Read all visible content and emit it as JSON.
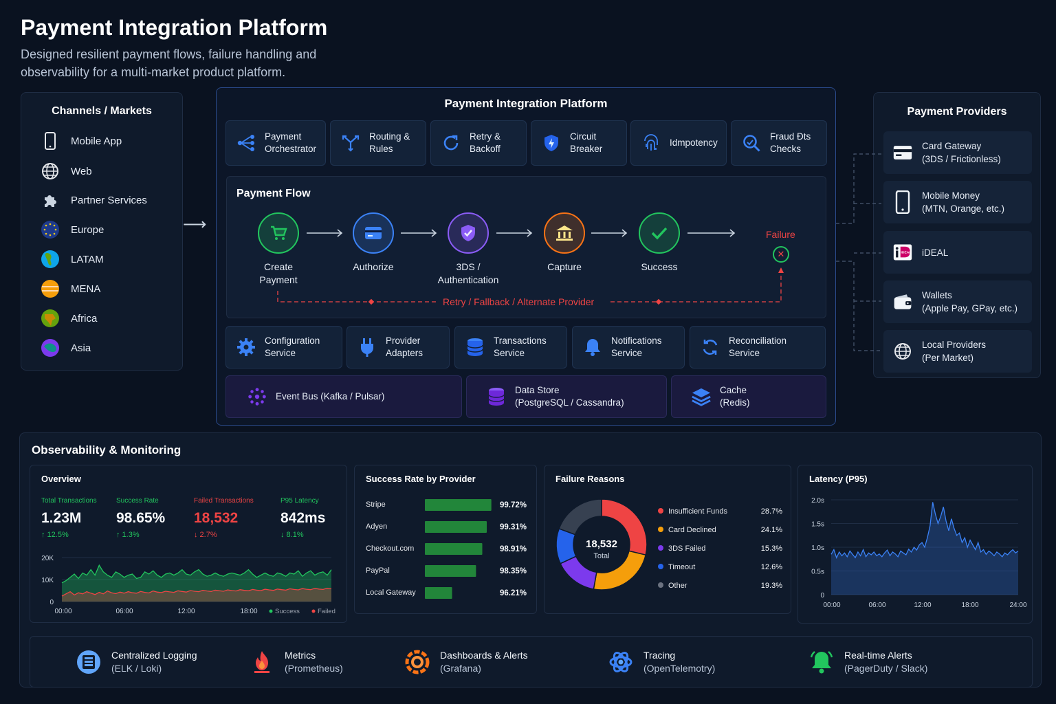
{
  "header": {
    "title": "Payment Integration Platform",
    "subtitle": "Designed resilient payment flows, failure handling and observability for a multi-market product platform."
  },
  "channels": {
    "title": "Channels / Markets",
    "items": [
      {
        "label": "Mobile App",
        "icon": "phone-icon"
      },
      {
        "label": "Web",
        "icon": "globe-icon"
      },
      {
        "label": "Partner Services",
        "icon": "puzzle-icon"
      },
      {
        "label": "Europe",
        "icon": "eu-flag-icon"
      },
      {
        "label": "LATAM",
        "icon": "latam-globe-icon"
      },
      {
        "label": "MENA",
        "icon": "mena-globe-icon"
      },
      {
        "label": "Africa",
        "icon": "africa-globe-icon"
      },
      {
        "label": "Asia",
        "icon": "asia-globe-icon"
      }
    ]
  },
  "platform": {
    "title": "Payment Integration Platform",
    "top_modules": [
      {
        "l1": "Payment",
        "l2": "Orchestrator",
        "icon": "orchestrator-icon"
      },
      {
        "l1": "Routing &",
        "l2": "Rules",
        "icon": "routing-icon"
      },
      {
        "l1": "Retry &",
        "l2": "Backoff",
        "icon": "retry-icon"
      },
      {
        "l1": "Circuit",
        "l2": "Breaker",
        "icon": "shield-bolt-icon"
      },
      {
        "l1": "Idmpotency",
        "l2": "",
        "icon": "fingerprint-icon"
      },
      {
        "l1": "Fraud Đts",
        "l2": "Checks",
        "icon": "search-icon"
      }
    ],
    "flow": {
      "title": "Payment Flow",
      "steps": [
        {
          "l1": "Create",
          "l2": "Payment",
          "color": "#22c55e",
          "icon": "cart-icon"
        },
        {
          "l1": "Authorize",
          "l2": "",
          "color": "#3b82f6",
          "icon": "card-icon"
        },
        {
          "l1": "3DS /",
          "l2": "Authentication",
          "color": "#8b5cf6",
          "icon": "shield-check-icon"
        },
        {
          "l1": "Capture",
          "l2": "",
          "color": "#f97316",
          "icon": "bank-icon"
        },
        {
          "l1": "Success",
          "l2": "",
          "color": "#22c55e",
          "icon": "check-icon"
        }
      ],
      "failure_label": "Failure",
      "retry_label": "Retry / Fallback / Alternate Provider"
    },
    "services": [
      {
        "l1": "Configuration",
        "l2": "Service",
        "icon": "gear-icon"
      },
      {
        "l1": "Provider",
        "l2": "Adapters",
        "icon": "plug-icon"
      },
      {
        "l1": "Transactions",
        "l2": "Service",
        "icon": "database-icon"
      },
      {
        "l1": "Notifications",
        "l2": "Service",
        "icon": "bell-icon"
      },
      {
        "l1": "Reconciliation",
        "l2": "Service",
        "icon": "sync-icon"
      }
    ],
    "infra": [
      {
        "l1": "Event Bus (Kafka / Pulsar)",
        "l2": "",
        "icon": "event-bus-icon"
      },
      {
        "l1": "Data Store",
        "l2": "(PostgreSQL / Cassandra)",
        "icon": "datastore-icon"
      },
      {
        "l1": "Cache",
        "l2": "(Redis)",
        "icon": "layers-icon"
      }
    ]
  },
  "providers": {
    "title": "Payment Providers",
    "items": [
      {
        "l1": "Card Gateway",
        "l2": "(3DS / Frictionless)",
        "icon": "credit-card-icon"
      },
      {
        "l1": "Mobile Money",
        "l2": "(MTN, Orange, etc.)",
        "icon": "mobile-icon"
      },
      {
        "l1": "iDEAL",
        "l2": "",
        "icon": "ideal-logo-icon"
      },
      {
        "l1": "Wallets",
        "l2": "(Apple Pay, GPay, etc.)",
        "icon": "wallet-icon"
      },
      {
        "l1": "Local Providers",
        "l2": "(Per Market)",
        "icon": "globe-icon"
      }
    ]
  },
  "observability": {
    "title": "Observability & Monitoring",
    "overview": {
      "title": "Overview",
      "kpis": [
        {
          "label": "Total Transactions",
          "value": "1.23M",
          "delta": "↑ 12.5%",
          "color": "#22c55e"
        },
        {
          "label": "Success Rate",
          "value": "98.65%",
          "delta": "↑ 1.3%",
          "color": "#22c55e"
        },
        {
          "label": "Failed Transactions",
          "value": "18,532",
          "delta": "↓ 2.7%",
          "color": "#ef4444"
        },
        {
          "label": "P95 Latency",
          "value": "842ms",
          "delta": "↓ 8.1%",
          "color": "#22c55e"
        }
      ]
    },
    "tools": [
      {
        "l1": "Centralized Logging",
        "l2": "(ELK / Loki)",
        "icon": "logging-icon"
      },
      {
        "l1": "Metrics",
        "l2": "(Prometheus)",
        "icon": "prometheus-icon"
      },
      {
        "l1": "Dashboards & Alerts",
        "l2": "(Grafana)",
        "icon": "grafana-icon"
      },
      {
        "l1": "Tracing",
        "l2": "(OpenTelemotry)",
        "icon": "tracing-icon"
      },
      {
        "l1": "Real-time Alerts",
        "l2": "(PagerDuty / Slack)",
        "icon": "alert-bell-icon"
      }
    ]
  },
  "chart_data": [
    {
      "type": "area",
      "title": "Overview",
      "x_ticks": [
        "00:00",
        "06:00",
        "12:00",
        "18:00"
      ],
      "y_ticks": [
        "0",
        "10K",
        "20K"
      ],
      "ylim": [
        0,
        20000
      ],
      "series": [
        {
          "name": "Success",
          "color": "#22c55e",
          "values": [
            8500,
            9500,
            11000,
            12500,
            10500,
            13000,
            12000,
            14500,
            12000,
            16500,
            13500,
            12000,
            11000,
            13500,
            12500,
            11000,
            12000,
            12500,
            10500,
            11000,
            13500,
            12500,
            14000,
            12000,
            11000,
            12500,
            13000,
            12000,
            13000,
            14500,
            12500,
            12000,
            13500,
            14500,
            12500,
            11500,
            12000,
            13000,
            12000,
            11500,
            12500,
            13000,
            12500,
            12000,
            13000,
            14500,
            12500,
            11000,
            12000,
            13000,
            12000,
            11500,
            13000,
            12500,
            11500,
            13000,
            12500,
            14000,
            11500,
            13000,
            14000,
            12000,
            13000,
            13500,
            12000,
            14500
          ]
        },
        {
          "name": "Failed",
          "color": "#ef4444",
          "values": [
            2500,
            3500,
            4500,
            3000,
            4000,
            3500,
            4500,
            3800,
            3200,
            4200,
            3500,
            4800,
            4000,
            3600,
            4300,
            3800,
            4500,
            4000,
            3800,
            4600,
            4200,
            3900,
            4800,
            4300,
            4100,
            4700,
            4400,
            4200,
            4900,
            4600,
            4300,
            5000,
            4700,
            4500,
            5100,
            4800,
            4600,
            5200,
            4900,
            4700,
            5300,
            5000,
            4800,
            5400,
            5100,
            4900,
            5500,
            5200,
            5000,
            5600,
            5300,
            5100,
            5700,
            5400,
            5200,
            5800,
            5500,
            5300,
            5900,
            5600,
            5400,
            6000,
            5700,
            5500,
            6100,
            5800
          ]
        }
      ]
    },
    {
      "type": "bar",
      "title": "Success Rate by Provider",
      "categories": [
        "Stripe",
        "Adyen",
        "Checkout.com",
        "PayPal",
        "Local Gateway"
      ],
      "values": [
        99.72,
        99.31,
        98.91,
        98.35,
        96.21
      ],
      "labels": [
        "99.72%",
        "99.31%",
        "98.91%",
        "98.35%",
        "96.21%"
      ],
      "color": "#22863a"
    },
    {
      "type": "pie",
      "title": "Failure Reasons",
      "center_value": "18,532",
      "center_label": "Total",
      "categories": [
        "Insufficient Funds",
        "Card Declined",
        "3DS Failed",
        "Timeout",
        "Other"
      ],
      "values": [
        28.7,
        24.1,
        15.3,
        12.6,
        19.3
      ],
      "labels": [
        "28.7%",
        "24.1%",
        "15.3%",
        "12.6%",
        "19.3%"
      ],
      "colors": [
        "#ef4444",
        "#f59e0b",
        "#7c3aed",
        "#2563eb",
        "#374151"
      ]
    },
    {
      "type": "line",
      "title": "Latency (P95)",
      "x_ticks": [
        "00:00",
        "06:00",
        "12:00",
        "18:00",
        "24:00"
      ],
      "y_ticks": [
        "0",
        "0.5s",
        "1.0s",
        "1.5s",
        "2.0s"
      ],
      "ylim": [
        0,
        2.0
      ],
      "color": "#3b82f6",
      "values": [
        0.85,
        0.95,
        0.78,
        0.9,
        0.82,
        0.88,
        0.8,
        0.92,
        0.85,
        0.78,
        0.9,
        0.82,
        0.95,
        0.8,
        0.88,
        0.84,
        0.9,
        0.82,
        0.86,
        0.8,
        0.88,
        0.94,
        0.82,
        0.9,
        0.86,
        0.8,
        0.92,
        0.88,
        0.84,
        0.96,
        0.9,
        1.0,
        0.94,
        1.05,
        1.1,
        1.0,
        1.2,
        1.45,
        1.95,
        1.7,
        1.5,
        1.65,
        1.85,
        1.55,
        1.35,
        1.6,
        1.4,
        1.25,
        1.3,
        1.1,
        1.2,
        1.0,
        1.15,
        1.05,
        0.95,
        1.1,
        0.9,
        0.95,
        0.85,
        0.92,
        0.88,
        0.82,
        0.9,
        0.86,
        0.8,
        0.88,
        0.84,
        0.9,
        0.95,
        0.88,
        0.92
      ]
    }
  ]
}
